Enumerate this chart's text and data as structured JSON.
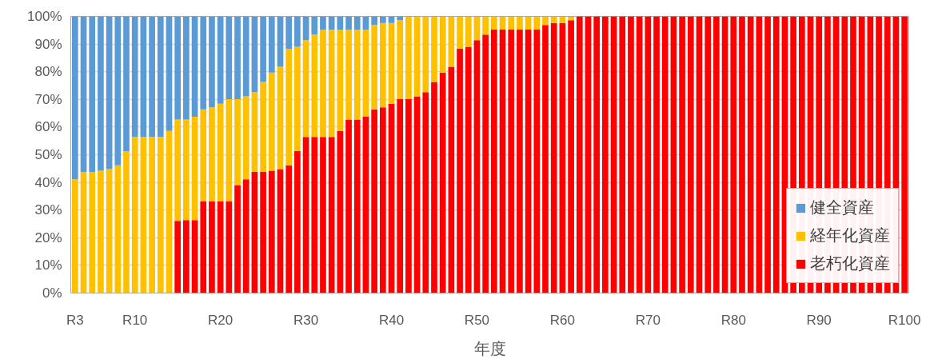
{
  "chart_data": {
    "type": "bar",
    "stacked": true,
    "xlabel": "年度",
    "categories": [
      "R3",
      null,
      null,
      null,
      null,
      null,
      null,
      "R10",
      null,
      null,
      null,
      null,
      null,
      null,
      null,
      null,
      null,
      "R20",
      null,
      null,
      null,
      null,
      null,
      null,
      null,
      null,
      null,
      "R30",
      null,
      null,
      null,
      null,
      null,
      null,
      null,
      null,
      null,
      "R40",
      null,
      null,
      null,
      null,
      null,
      null,
      null,
      null,
      null,
      "R50",
      null,
      null,
      null,
      null,
      null,
      null,
      null,
      null,
      null,
      "R60",
      null,
      null,
      null,
      null,
      null,
      null,
      null,
      null,
      null,
      "R70",
      null,
      null,
      null,
      null,
      null,
      null,
      null,
      null,
      null,
      "R80",
      null,
      null,
      null,
      null,
      null,
      null,
      null,
      null,
      null,
      "R90",
      null,
      null,
      null,
      null,
      null,
      null,
      null,
      null,
      null,
      "R100"
    ],
    "series": [
      {
        "name": "老朽化資産",
        "color": "#ff0000",
        "values": [
          0,
          0,
          0,
          0,
          0,
          0,
          0,
          0,
          0,
          0,
          0,
          0,
          26.1,
          26.4,
          26.4,
          33.2,
          33.2,
          33.2,
          33.2,
          39.0,
          41.1,
          43.8,
          43.8,
          44.2,
          44.8,
          46.2,
          51.3,
          56.4,
          56.4,
          56.4,
          56.4,
          58.6,
          62.7,
          62.7,
          63.7,
          66.4,
          67.1,
          68.4,
          70.1,
          70.1,
          71.1,
          72.6,
          76.3,
          79.7,
          81.8,
          88.3,
          89.0,
          91.4,
          93.4,
          95.2,
          95.2,
          95.2,
          95.2,
          95.2,
          95.2,
          96.9,
          97.6,
          97.6,
          98.6,
          100,
          100,
          100,
          100,
          100,
          100,
          100,
          100,
          100,
          100,
          100,
          100,
          100,
          100,
          100,
          100,
          100,
          100,
          100,
          100,
          100,
          100,
          100,
          100,
          100,
          100,
          100,
          100,
          100,
          100,
          100,
          100,
          100,
          100,
          100,
          100,
          100,
          100,
          100
        ]
      },
      {
        "name": "経年化資産",
        "color": "#ffc000",
        "values": [
          41.1,
          43.8,
          43.8,
          44.2,
          44.8,
          46.2,
          51.3,
          56.4,
          56.4,
          56.4,
          56.4,
          58.6,
          36.6,
          36.3,
          37.3,
          33.2,
          33.9,
          35.2,
          36.9,
          31.1,
          30.0,
          28.8,
          32.5,
          35.5,
          37.0,
          42.1,
          37.7,
          35.0,
          37.0,
          38.8,
          38.8,
          36.6,
          32.5,
          32.5,
          31.5,
          30.5,
          30.5,
          29.2,
          28.5,
          29.9,
          28.9,
          27.4,
          23.7,
          20.3,
          18.2,
          11.7,
          11.0,
          8.6,
          6.6,
          4.8,
          4.8,
          4.8,
          4.8,
          4.8,
          4.8,
          3.1,
          2.4,
          2.4,
          1.4,
          0,
          0,
          0,
          0,
          0,
          0,
          0,
          0,
          0,
          0,
          0,
          0,
          0,
          0,
          0,
          0,
          0,
          0,
          0,
          0,
          0,
          0,
          0,
          0,
          0,
          0,
          0,
          0,
          0,
          0,
          0,
          0,
          0,
          0,
          0,
          0,
          0,
          0,
          0
        ]
      },
      {
        "name": "健全資産",
        "color": "#5b9bd5",
        "values": [
          58.9,
          56.2,
          56.2,
          55.8,
          55.2,
          53.8,
          48.7,
          43.6,
          43.6,
          43.6,
          43.6,
          41.4,
          37.3,
          37.3,
          36.3,
          33.6,
          32.9,
          31.6,
          29.9,
          29.9,
          28.9,
          27.4,
          23.7,
          20.3,
          18.2,
          11.7,
          11.0,
          8.6,
          6.6,
          4.8,
          4.8,
          4.8,
          4.8,
          4.8,
          4.8,
          3.1,
          2.4,
          2.4,
          1.4,
          0,
          0,
          0,
          0,
          0,
          0,
          0,
          0,
          0,
          0,
          0,
          0,
          0,
          0,
          0,
          0,
          0,
          0,
          0,
          0,
          0,
          0,
          0,
          0,
          0,
          0,
          0,
          0,
          0,
          0,
          0,
          0,
          0,
          0,
          0,
          0,
          0,
          0,
          0,
          0,
          0,
          0,
          0,
          0,
          0,
          0,
          0,
          0,
          0,
          0,
          0,
          0,
          0,
          0,
          0,
          0,
          0,
          0,
          0
        ]
      }
    ],
    "ylim": [
      0,
      100
    ],
    "yticks": [
      {
        "value": 0,
        "label": "0%"
      },
      {
        "value": 10,
        "label": "10%"
      },
      {
        "value": 20,
        "label": "20%"
      },
      {
        "value": 30,
        "label": "30%"
      },
      {
        "value": 40,
        "label": "40%"
      },
      {
        "value": 50,
        "label": "50%"
      },
      {
        "value": 60,
        "label": "60%"
      },
      {
        "value": 70,
        "label": "70%"
      },
      {
        "value": 80,
        "label": "80%"
      },
      {
        "value": 90,
        "label": "90%"
      },
      {
        "value": 100,
        "label": "100%"
      }
    ],
    "grid": "y",
    "legend": "bottom right"
  }
}
